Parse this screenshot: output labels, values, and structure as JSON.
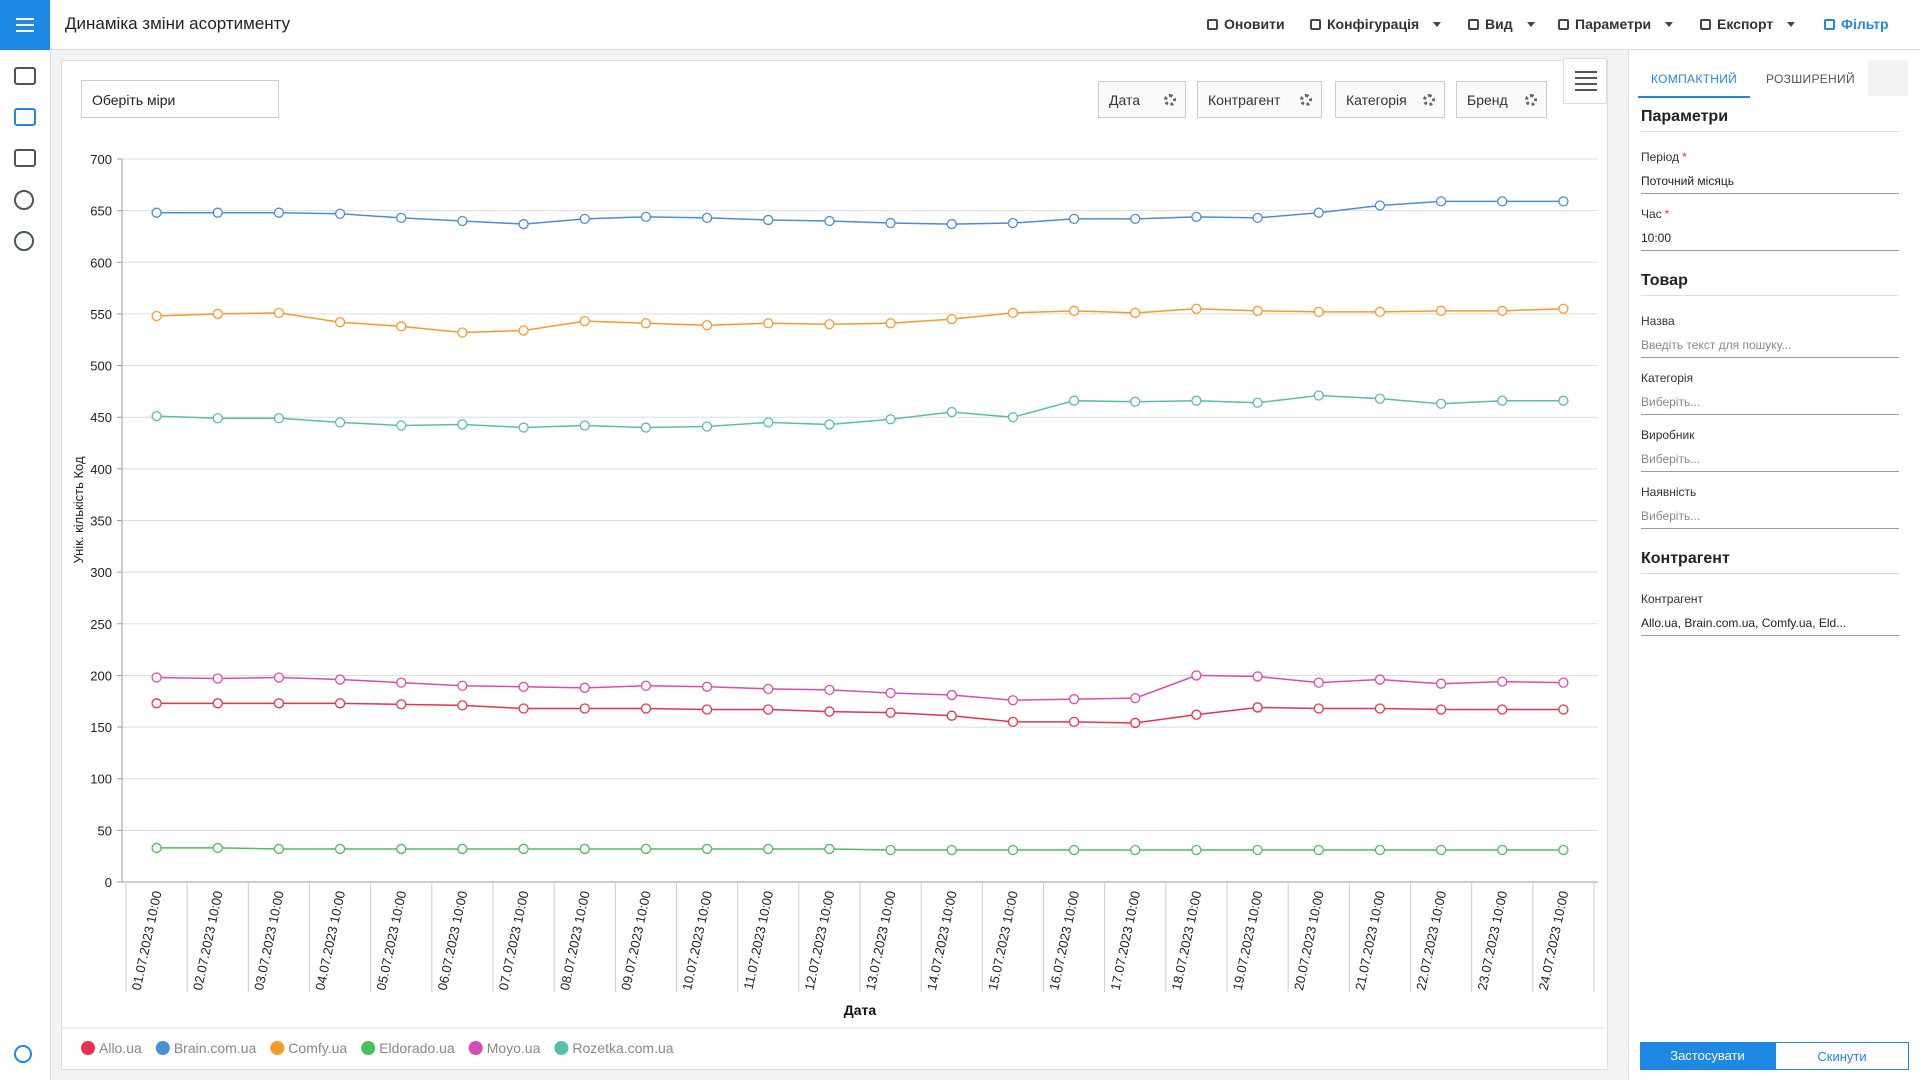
{
  "header": {
    "title": "Динаміка зміни асортименту",
    "tools": [
      "Оновити",
      "Конфігурація",
      "Вид",
      "Параметри",
      "Експорт",
      "Фільтр"
    ]
  },
  "controls": {
    "measure": "Оберіть міри",
    "dimensions": [
      "Дата",
      "Контрагент",
      "Категорія",
      "Бренд"
    ]
  },
  "filter_panel": {
    "tabs": [
      "КОМПАКТНИЙ",
      "РОЗШИРЕНИЙ"
    ],
    "sections": [
      {
        "title": "Параметри",
        "fields": [
          {
            "label": "Період",
            "mark": "*",
            "value": "Поточний місяць"
          },
          {
            "label": "Час",
            "mark": "*",
            "value": "10:00"
          }
        ]
      },
      {
        "title": "Товар",
        "fields": [
          {
            "label": "Назва",
            "placeholder": "Введіть текст для пошуку..."
          },
          {
            "label": "Категорія",
            "placeholder": "Виберіть..."
          },
          {
            "label": "Виробник",
            "placeholder": "Виберіть..."
          },
          {
            "label": "Наявність",
            "placeholder": "Виберіть..."
          }
        ]
      },
      {
        "title": "Контрагент",
        "fields": [
          {
            "label": "Контрагент",
            "value": "Allo.ua, Brain.com.ua, Comfy.ua, Eld..."
          }
        ]
      }
    ],
    "buttons": [
      "Застосувати",
      "Скинути"
    ]
  },
  "chart_data": {
    "type": "line",
    "x_label": "Дата",
    "y_label": "Унік. кількість Код",
    "categories": [
      "01.07.2023 10:00",
      "02.07.2023 10:00",
      "03.07.2023 10:00",
      "04.07.2023 10:00",
      "05.07.2023 10:00",
      "06.07.2023 10:00",
      "07.07.2023 10:00",
      "08.07.2023 10:00",
      "09.07.2023 10:00",
      "10.07.2023 10:00",
      "11.07.2023 10:00",
      "12.07.2023 10:00",
      "13.07.2023 10:00",
      "14.07.2023 10:00",
      "15.07.2023 10:00",
      "16.07.2023 10:00",
      "17.07.2023 10:00",
      "18.07.2023 10:00",
      "19.07.2023 10:00",
      "20.07.2023 10:00",
      "21.07.2023 10:00",
      "22.07.2023 10:00",
      "23.07.2023 10:00",
      "24.07.2023 10:00"
    ],
    "series": [
      {
        "name": "Allo.ua",
        "color": "#e8334a",
        "values": [
          173,
          173,
          173,
          173,
          172,
          171,
          168,
          168,
          168,
          167,
          167,
          165,
          164,
          161,
          155,
          155,
          154,
          162,
          169,
          168,
          168,
          167,
          167,
          167
        ]
      },
      {
        "name": "Brain.com.ua",
        "color": "#4a8fd4",
        "values": [
          648,
          648,
          648,
          647,
          643,
          640,
          637,
          642,
          644,
          643,
          641,
          640,
          638,
          637,
          638,
          642,
          642,
          644,
          643,
          648,
          655,
          659,
          659,
          659
        ]
      },
      {
        "name": "Comfy.ua",
        "color": "#f79a2c",
        "values": [
          548,
          550,
          551,
          542,
          538,
          532,
          534,
          543,
          541,
          539,
          541,
          540,
          541,
          545,
          551,
          553,
          551,
          555,
          553,
          552,
          552,
          553,
          553,
          555
        ]
      },
      {
        "name": "Eldorado.ua",
        "color": "#4cbf5a",
        "values": [
          33,
          33,
          32,
          32,
          32,
          32,
          32,
          32,
          32,
          32,
          32,
          32,
          31,
          31,
          31,
          31,
          31,
          31,
          31,
          31,
          31,
          31,
          31,
          31
        ]
      },
      {
        "name": "Moyo.ua",
        "color": "#d94bb5",
        "values": [
          198,
          197,
          198,
          196,
          193,
          190,
          189,
          188,
          190,
          189,
          187,
          186,
          183,
          181,
          176,
          177,
          178,
          200,
          199,
          193,
          196,
          192,
          194,
          193
        ]
      },
      {
        "name": "Rozetka.com.ua",
        "color": "#55bfae",
        "values": [
          451,
          449,
          449,
          445,
          442,
          443,
          440,
          442,
          440,
          441,
          445,
          443,
          448,
          455,
          450,
          466,
          465,
          466,
          464,
          471,
          468,
          463,
          466,
          466
        ]
      }
    ],
    "ylim": [
      0,
      700
    ],
    "yticks": [
      0,
      50,
      100,
      150,
      200,
      250,
      300,
      350,
      400,
      450,
      500,
      550,
      600,
      650,
      700
    ],
    "grid": true,
    "legend": "bottom-left"
  }
}
